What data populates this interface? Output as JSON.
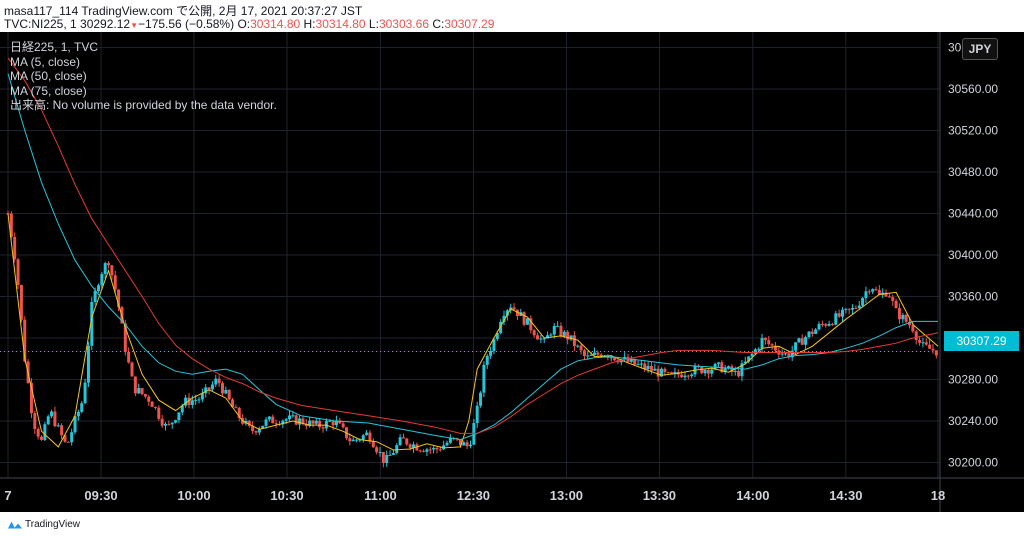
{
  "header": {
    "line1": "masa117_114 TradingView.com で公開, 2月 17, 2021 20:37:27 JST",
    "symbol_prefix": "TVC:NI225, 1 30292.12",
    "change_arrow": "▼",
    "change_text": "−175.56 (−0.58%)",
    "o_label": "O:",
    "o_value": "30314.80",
    "h_label": "H:",
    "h_value": "30314.80",
    "l_label": "L:",
    "l_value": "30303.66",
    "c_label": "C:",
    "c_value": "30307.29"
  },
  "legend": {
    "line1": "日経225, 1, TVC",
    "line2": "MA (5, close)",
    "line3": "MA (50, close)",
    "line4": "MA (75, close)",
    "line5": "出来高: No volume is provided by the data vendor."
  },
  "currency_button": "JPY",
  "last_price_label": "30307.29",
  "brand": "TradingView",
  "colors": {
    "up": "#26c6da",
    "down": "#ef5350",
    "ma5": "#f5c518",
    "ma50": "#26c6da",
    "ma75": "#e53935",
    "grid": "#1e222d"
  },
  "chart_data": {
    "type": "line",
    "title": "日経225, 1, TVC",
    "y_ticks": [
      30200,
      30240,
      30280,
      30320,
      30360,
      30400,
      30440,
      30480,
      30520,
      30560,
      30600
    ],
    "y_tick_labels": [
      "30200.00",
      "30240.00",
      "30280.00",
      "30320.00",
      "30360.00",
      "30400.00",
      "30440.00",
      "30480.00",
      "30520.00",
      "30560.00",
      "30600.00"
    ],
    "ylim": [
      30185,
      30615
    ],
    "x_ticks": [
      "7",
      "09:30",
      "10:00",
      "10:30",
      "11:00",
      "12:30",
      "13:00",
      "13:30",
      "14:00",
      "14:30",
      "18"
    ],
    "x_tick_pos": [
      0,
      22.2,
      44.4,
      66.6,
      88.9,
      111.1,
      133.3,
      155.5,
      177.8,
      200,
      222
    ],
    "xlim": [
      0,
      222
    ],
    "price": {
      "x": [
        0,
        2,
        4,
        6,
        8,
        10,
        12,
        14,
        16,
        18,
        20,
        22,
        24,
        26,
        28,
        30,
        34,
        38,
        42,
        46,
        50,
        54,
        58,
        62,
        66,
        70,
        74,
        78,
        82,
        86,
        90,
        94,
        98,
        102,
        106,
        110,
        112,
        114,
        116,
        118,
        120,
        124,
        128,
        130,
        134,
        138,
        142,
        146,
        150,
        154,
        158,
        162,
        166,
        170,
        174,
        178,
        180,
        182,
        186,
        190,
        194,
        198,
        202,
        204,
        206,
        208,
        210,
        212,
        216,
        218,
        222
      ],
      "y": [
        30440,
        30390,
        30300,
        30240,
        30220,
        30250,
        30232,
        30215,
        30240,
        30262,
        30350,
        30382,
        30395,
        30360,
        30310,
        30272,
        30260,
        30232,
        30258,
        30262,
        30280,
        30250,
        30230,
        30240,
        30242,
        30240,
        30235,
        30240,
        30220,
        30228,
        30200,
        30222,
        30215,
        30212,
        30222,
        30215,
        30250,
        30300,
        30318,
        30345,
        30352,
        30334,
        30315,
        30330,
        30320,
        30300,
        30306,
        30300,
        30294,
        30289,
        30282,
        30288,
        30290,
        30292,
        30285,
        30306,
        30318,
        30313,
        30303,
        30320,
        30332,
        30340,
        30348,
        30360,
        30372,
        30360,
        30366,
        30345,
        30330,
        30312,
        30307
      ]
    },
    "series": [
      {
        "name": "MA (5, close)",
        "x": [
          0,
          4,
          8,
          12,
          16,
          20,
          24,
          28,
          32,
          36,
          40,
          44,
          48,
          52,
          56,
          60,
          64,
          68,
          72,
          76,
          80,
          84,
          88,
          92,
          96,
          100,
          104,
          108,
          110,
          112,
          116,
          120,
          124,
          128,
          132,
          136,
          140,
          144,
          148,
          152,
          156,
          160,
          164,
          168,
          172,
          176,
          180,
          184,
          188,
          192,
          196,
          200,
          204,
          208,
          212,
          216,
          222
        ],
        "y": [
          30440,
          30300,
          30230,
          30215,
          30245,
          30340,
          30385,
          30330,
          30285,
          30260,
          30250,
          30262,
          30270,
          30262,
          30240,
          30232,
          30236,
          30240,
          30236,
          30236,
          30230,
          30222,
          30220,
          30212,
          30213,
          30218,
          30214,
          30215,
          30240,
          30290,
          30320,
          30348,
          30340,
          30320,
          30322,
          30318,
          30302,
          30303,
          30296,
          30290,
          30284,
          30286,
          30289,
          30291,
          30287,
          30295,
          30310,
          30312,
          30304,
          30312,
          30325,
          30338,
          30350,
          30362,
          30364,
          30333,
          30312
        ]
      },
      {
        "name": "MA (50, close)",
        "x": [
          0,
          4,
          8,
          12,
          16,
          20,
          24,
          28,
          32,
          36,
          40,
          44,
          48,
          52,
          56,
          60,
          64,
          70,
          78,
          86,
          94,
          102,
          108,
          112,
          116,
          120,
          124,
          128,
          132,
          136,
          140,
          144,
          148,
          152,
          156,
          160,
          164,
          168,
          172,
          176,
          180,
          184,
          188,
          192,
          196,
          200,
          204,
          208,
          212,
          216,
          222
        ],
        "y": [
          30575,
          30520,
          30470,
          30430,
          30395,
          30370,
          30350,
          30333,
          30312,
          30296,
          30288,
          30285,
          30288,
          30290,
          30285,
          30270,
          30256,
          30245,
          30240,
          30238,
          30232,
          30226,
          30222,
          30228,
          30236,
          30248,
          30262,
          30276,
          30290,
          30298,
          30301,
          30302,
          30300,
          30298,
          30296,
          30294,
          30293,
          30292,
          30291,
          30290,
          30294,
          30300,
          30303,
          30304,
          30306,
          30310,
          30315,
          30322,
          30330,
          30336,
          30336
        ]
      },
      {
        "name": "MA (75, close)",
        "x": [
          0,
          4,
          8,
          12,
          16,
          20,
          24,
          28,
          32,
          36,
          40,
          44,
          48,
          52,
          56,
          60,
          64,
          70,
          78,
          86,
          94,
          102,
          108,
          112,
          116,
          120,
          124,
          128,
          132,
          136,
          140,
          144,
          148,
          152,
          156,
          160,
          164,
          168,
          172,
          176,
          180,
          184,
          188,
          192,
          196,
          200,
          204,
          208,
          212,
          216,
          222
        ],
        "y": [
          30590,
          30568,
          30540,
          30505,
          30468,
          30435,
          30410,
          30385,
          30360,
          30334,
          30313,
          30300,
          30290,
          30282,
          30276,
          30268,
          30262,
          30255,
          30250,
          30245,
          30240,
          30234,
          30228,
          30228,
          30234,
          30244,
          30256,
          30266,
          30276,
          30284,
          30290,
          30296,
          30300,
          30303,
          30306,
          30308,
          30308,
          30308,
          30307,
          30306,
          30306,
          30306,
          30306,
          30306,
          30306,
          30307,
          30309,
          30312,
          30315,
          30320,
          30325
        ]
      }
    ]
  }
}
